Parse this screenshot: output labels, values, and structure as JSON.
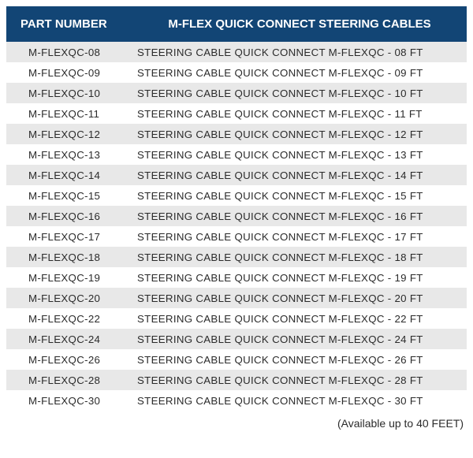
{
  "table": {
    "header_bg": "#124575",
    "header_color": "#ffffff",
    "row_odd_bg": "#e8e8e8",
    "row_even_bg": "#ffffff",
    "text_color": "#2b2b2b",
    "columns": [
      {
        "label": "PART NUMBER"
      },
      {
        "label": "M-FLEX QUICK CONNECT STEERING CABLES"
      }
    ],
    "rows": [
      {
        "part": "M-FLEXQC-08",
        "desc": "STEERING CABLE QUICK CONNECT  M-FLEXQC - 08 FT"
      },
      {
        "part": "M-FLEXQC-09",
        "desc": "STEERING CABLE QUICK CONNECT  M-FLEXQC - 09 FT"
      },
      {
        "part": "M-FLEXQC-10",
        "desc": "STEERING CABLE QUICK CONNECT  M-FLEXQC - 10 FT"
      },
      {
        "part": "M-FLEXQC-11",
        "desc": "STEERING CABLE QUICK CONNECT  M-FLEXQC - 11 FT"
      },
      {
        "part": "M-FLEXQC-12",
        "desc": "STEERING CABLE QUICK CONNECT  M-FLEXQC - 12 FT"
      },
      {
        "part": "M-FLEXQC-13",
        "desc": "STEERING CABLE QUICK CONNECT  M-FLEXQC - 13 FT"
      },
      {
        "part": "M-FLEXQC-14",
        "desc": "STEERING CABLE QUICK CONNECT  M-FLEXQC - 14 FT"
      },
      {
        "part": "M-FLEXQC-15",
        "desc": "STEERING CABLE QUICK CONNECT  M-FLEXQC - 15 FT"
      },
      {
        "part": "M-FLEXQC-16",
        "desc": "STEERING CABLE QUICK CONNECT  M-FLEXQC - 16 FT"
      },
      {
        "part": "M-FLEXQC-17",
        "desc": "STEERING CABLE QUICK CONNECT  M-FLEXQC - 17 FT"
      },
      {
        "part": "M-FLEXQC-18",
        "desc": "STEERING CABLE QUICK CONNECT  M-FLEXQC - 18 FT"
      },
      {
        "part": "M-FLEXQC-19",
        "desc": "STEERING CABLE QUICK CONNECT  M-FLEXQC - 19 FT"
      },
      {
        "part": "M-FLEXQC-20",
        "desc": "STEERING CABLE QUICK CONNECT  M-FLEXQC - 20 FT"
      },
      {
        "part": "M-FLEXQC-22",
        "desc": "STEERING CABLE QUICK CONNECT  M-FLEXQC - 22 FT"
      },
      {
        "part": "M-FLEXQC-24",
        "desc": "STEERING CABLE QUICK CONNECT  M-FLEXQC - 24 FT"
      },
      {
        "part": "M-FLEXQC-26",
        "desc": "STEERING CABLE QUICK CONNECT  M-FLEXQC - 26 FT"
      },
      {
        "part": "M-FLEXQC-28",
        "desc": "STEERING CABLE QUICK CONNECT  M-FLEXQC - 28 FT"
      },
      {
        "part": "M-FLEXQC-30",
        "desc": "STEERING CABLE QUICK CONNECT  M-FLEXQC - 30 FT"
      }
    ]
  },
  "footer_note": "(Available up to 40 FEET)"
}
